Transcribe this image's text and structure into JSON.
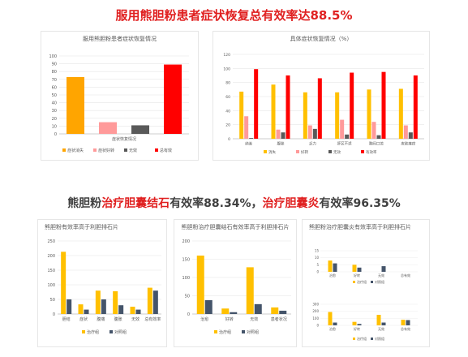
{
  "headline_top": "服用熊胆粉患者症状恢复总有效率达88.5%",
  "headline_bottom": {
    "part1": "熊胆粉",
    "part2": "治疗胆囊结石",
    "part3": "有效率88.34%，",
    "part4": "治疗胆囊炎",
    "part5": "有效率96.35%"
  },
  "colors": {
    "orange": "#ffa500",
    "gold": "#ffc000",
    "pink": "#ff9a9a",
    "gray": "#595959",
    "red": "#ff0000",
    "navy": "#44546a",
    "headline_red": "#e02020"
  },
  "chart_data": [
    {
      "id": "c1",
      "type": "bar",
      "title": "服用熊胆粉患者症状恢复情况",
      "xlabel": "症状恢复情况",
      "categories": [
        "症状消失",
        "症状好转",
        "无效",
        "总有效"
      ],
      "values": [
        73,
        15,
        11,
        89
      ],
      "colors": [
        "#ffa500",
        "#ff9a9a",
        "#595959",
        "#ff0000"
      ],
      "ylim": [
        0,
        100
      ],
      "yticks": [
        0,
        10,
        20,
        30,
        40,
        50,
        60,
        70,
        80,
        90,
        100
      ],
      "legend": [
        "症状消失",
        "症状好转",
        "无效",
        "总有效"
      ],
      "legend_position": "bottom",
      "grid": true
    },
    {
      "id": "c2",
      "type": "bar",
      "title": "具体症状恢复情况（%）",
      "categories": [
        "纳差",
        "腹胀",
        "乏力",
        "肝区不适",
        "胸闷口苦",
        "皮肤瘙痒"
      ],
      "series": [
        {
          "name": "消失",
          "color": "#ffc000",
          "values": [
            67,
            77,
            66,
            66,
            70,
            71
          ]
        },
        {
          "name": "好转",
          "color": "#ff9a9a",
          "values": [
            32,
            13,
            19,
            27,
            24,
            19
          ]
        },
        {
          "name": "无效",
          "color": "#595959",
          "values": [
            1,
            9,
            14,
            6,
            5,
            9
          ]
        },
        {
          "name": "有效率",
          "color": "#ff0000",
          "values": [
            99,
            90,
            86,
            94,
            95,
            90
          ]
        }
      ],
      "ylim": [
        0,
        120
      ],
      "yticks": [
        0,
        20,
        40,
        60,
        80,
        100,
        120
      ],
      "legend_position": "bottom",
      "grid": true
    },
    {
      "id": "c3",
      "type": "bar",
      "title": "熊胆粉有效率高于利胆排石片",
      "categories": [
        "胆结",
        "症状",
        "腹痛",
        "腹胀",
        "无效",
        "总有效率"
      ],
      "series": [
        {
          "name": "治疗组",
          "color": "#ffc000",
          "values": [
            213,
            33,
            80,
            78,
            25,
            90
          ]
        },
        {
          "name": "对照组",
          "color": "#44546a",
          "values": [
            50,
            15,
            50,
            30,
            15,
            80
          ]
        }
      ],
      "ylim": [
        0,
        250
      ],
      "yticks": [
        0,
        50,
        100,
        150,
        200,
        250
      ],
      "legend_position": "bottom",
      "grid": true
    },
    {
      "id": "c4",
      "type": "bar",
      "title": "熊胆粉治疗胆囊结石有效率高于利胆排石片",
      "categories": [
        "治愈",
        "好转",
        "无效",
        "患者状况"
      ],
      "series": [
        {
          "name": "治疗组",
          "color": "#ffc000",
          "values": [
            160,
            15,
            128,
            18
          ]
        },
        {
          "name": "对照组",
          "color": "#44546a",
          "values": [
            38,
            5,
            27,
            9
          ]
        }
      ],
      "ylim": [
        0,
        200
      ],
      "yticks": [
        0,
        50,
        100,
        150,
        200
      ],
      "legend_position": "bottom",
      "grid": true
    },
    {
      "id": "c5",
      "type": "bar",
      "title": "熊胆粉治疗胆囊炎有效率高于利胆排石片",
      "subtitle": "",
      "categories": [
        "治愈",
        "好转",
        "无效",
        "总有效"
      ],
      "series": [
        {
          "name": "治疗组",
          "color": "#ffc000",
          "values": [
            8,
            5,
            0,
            0
          ]
        },
        {
          "name": "对照组",
          "color": "#44546a",
          "values": [
            6,
            3,
            4,
            0
          ]
        }
      ],
      "ylim": [
        0,
        15
      ],
      "yticks": [
        0,
        5,
        10,
        15
      ],
      "legend_position": "bottom",
      "grid": true
    },
    {
      "id": "c6",
      "type": "bar",
      "subtitle": "",
      "categories": [
        "治愈",
        "好转",
        "无效",
        "总有效"
      ],
      "series": [
        {
          "name": "治疗组",
          "color": "#ffc000",
          "values": [
            190,
            50,
            150,
            80
          ]
        },
        {
          "name": "对照组",
          "color": "#44546a",
          "values": [
            40,
            20,
            40,
            75
          ]
        }
      ],
      "ylim": [
        0,
        300
      ],
      "yticks": [
        0,
        100,
        200,
        300
      ],
      "legend_position": "bottom",
      "grid": true
    }
  ]
}
